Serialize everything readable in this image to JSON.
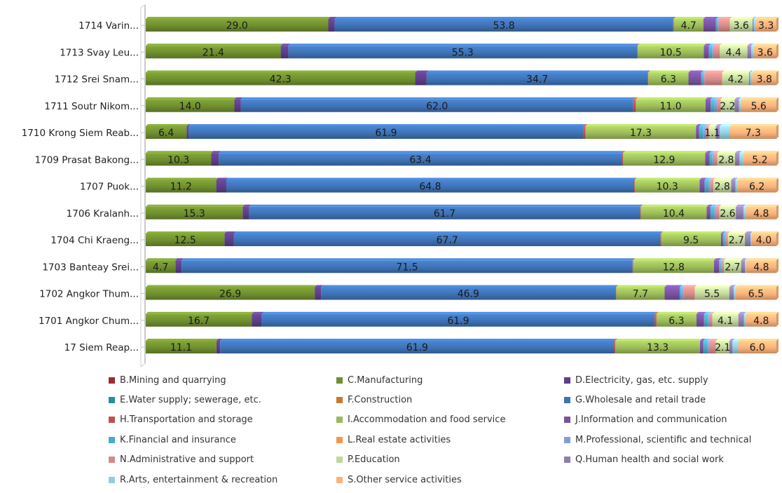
{
  "chart_data": {
    "type": "bar",
    "orientation": "horizontal",
    "stacked": "percent",
    "categories": [
      "1714 Varin...",
      "1713 Svay Leu...",
      "1712 Srei Snam...",
      "1711 Soutr Nikom...",
      "1710 Krong Siem Reab...",
      "1709 Prasat Bakong...",
      "1707 Puok...",
      "1706 Kralanh...",
      "1704 Chi Kraeng...",
      "1703 Banteay Srei...",
      "1702 Angkor Thum...",
      "1701 Angkor Chum...",
      "17  Siem Reap..."
    ],
    "series": [
      {
        "name": "B.Mining and quarrying",
        "color": "#9b2d30",
        "values": [
          0,
          0,
          0,
          0,
          0,
          0,
          0,
          0,
          0,
          0,
          0,
          0,
          0
        ]
      },
      {
        "name": "C.Manufacturing",
        "color": "#6f8e2f",
        "values": [
          29.0,
          21.4,
          42.3,
          14.0,
          6.4,
          10.3,
          11.2,
          15.3,
          12.5,
          4.7,
          26.9,
          16.7,
          11.1
        ]
      },
      {
        "name": "D.Electricity, gas, etc. supply",
        "color": "#5c3f86",
        "values": [
          1.0,
          1.2,
          1.8,
          1.0,
          0.3,
          1.2,
          1.6,
          1.0,
          1.5,
          1.0,
          1.0,
          1.6,
          0.6
        ]
      },
      {
        "name": "E.Water supply; sewerage, etc.",
        "color": "#2b8c9c",
        "values": [
          0,
          0,
          0,
          0,
          0,
          0,
          0,
          0,
          0,
          0,
          0,
          0,
          0
        ]
      },
      {
        "name": "F.Construction",
        "color": "#c77a2e",
        "values": [
          0,
          0,
          0,
          0,
          0,
          0,
          0,
          0,
          0,
          0,
          0,
          0,
          0
        ]
      },
      {
        "name": "G.Wholesale and retail trade",
        "color": "#3f72b5",
        "values": [
          53.8,
          55.3,
          34.7,
          62.0,
          61.9,
          63.4,
          64.8,
          61.7,
          67.7,
          71.5,
          46.9,
          61.9,
          61.9
        ]
      },
      {
        "name": "H.Transportation and storage",
        "color": "#c0504d",
        "values": [
          0.1,
          0.1,
          0.1,
          0.4,
          0.3,
          0.2,
          0.1,
          0.1,
          0.1,
          0.1,
          0.1,
          0.3,
          0.2
        ]
      },
      {
        "name": "I.Accommodation and food service",
        "color": "#9bbb59",
        "values": [
          4.7,
          10.5,
          6.3,
          11.0,
          17.3,
          12.9,
          10.3,
          10.4,
          9.5,
          12.8,
          7.7,
          6.3,
          13.3
        ]
      },
      {
        "name": "J.Information and communication",
        "color": "#7851a0",
        "values": [
          2.0,
          0.8,
          2.0,
          0.8,
          0.5,
          0.7,
          0.8,
          0.6,
          0.3,
          0.8,
          2.4,
          1.2,
          0.5
        ]
      },
      {
        "name": "K.Financial and insurance",
        "color": "#4bacc6",
        "values": [
          0.2,
          0.5,
          0.3,
          0.6,
          0.6,
          0.4,
          0.6,
          0.6,
          0.3,
          0.3,
          0.3,
          0.6,
          0.6
        ]
      },
      {
        "name": "L.Real estate activities",
        "color": "#f79646",
        "values": [
          0,
          0,
          0,
          0,
          0,
          0,
          0,
          0,
          0,
          0,
          0,
          0,
          0
        ]
      },
      {
        "name": "M.Professional, scientific and technical",
        "color": "#7f9fd4",
        "values": [
          0.2,
          0.3,
          0.2,
          0.4,
          0.5,
          0.3,
          0.3,
          0.3,
          0.2,
          0.2,
          0.3,
          0.3,
          0.3
        ]
      },
      {
        "name": "N.Administrative and support",
        "color": "#d48a88",
        "values": [
          1.8,
          0.9,
          2.8,
          0.6,
          0.4,
          0.5,
          0.5,
          0.5,
          0.3,
          0.3,
          1.8,
          0.4,
          1.1
        ]
      },
      {
        "name": "P.Education",
        "color": "#c3d69b",
        "values": [
          3.6,
          4.4,
          4.2,
          2.2,
          1.1,
          2.8,
          2.8,
          2.6,
          2.7,
          2.7,
          5.5,
          4.1,
          2.1
        ]
      },
      {
        "name": "Q.Human health and social work",
        "color": "#8e7fb0",
        "values": [
          0.2,
          0.6,
          0.2,
          0.7,
          0.6,
          0.7,
          0.7,
          1.2,
          0.9,
          0.6,
          0.7,
          0.9,
          0.5
        ]
      },
      {
        "name": "R.Arts, entertainment & recreation",
        "color": "#93cddd",
        "values": [
          0.3,
          0.4,
          0.3,
          0.3,
          1.6,
          0.6,
          0.3,
          0.4,
          0.1,
          0.2,
          0.3,
          0.3,
          0.9
        ]
      },
      {
        "name": "S.Other service activities",
        "color": "#fab27a",
        "values": [
          3.3,
          3.6,
          3.8,
          5.6,
          7.3,
          5.2,
          6.2,
          4.8,
          4.0,
          4.8,
          6.5,
          4.8,
          6.0
        ]
      }
    ],
    "data_labels": {
      "series": [
        "C.Manufacturing",
        "G.Wholesale and retail trade",
        "I.Accommodation and food service",
        "P.Education",
        "S.Other service activities"
      ]
    },
    "xlim": [
      0,
      100
    ],
    "grid": false,
    "legend": "bottom"
  }
}
